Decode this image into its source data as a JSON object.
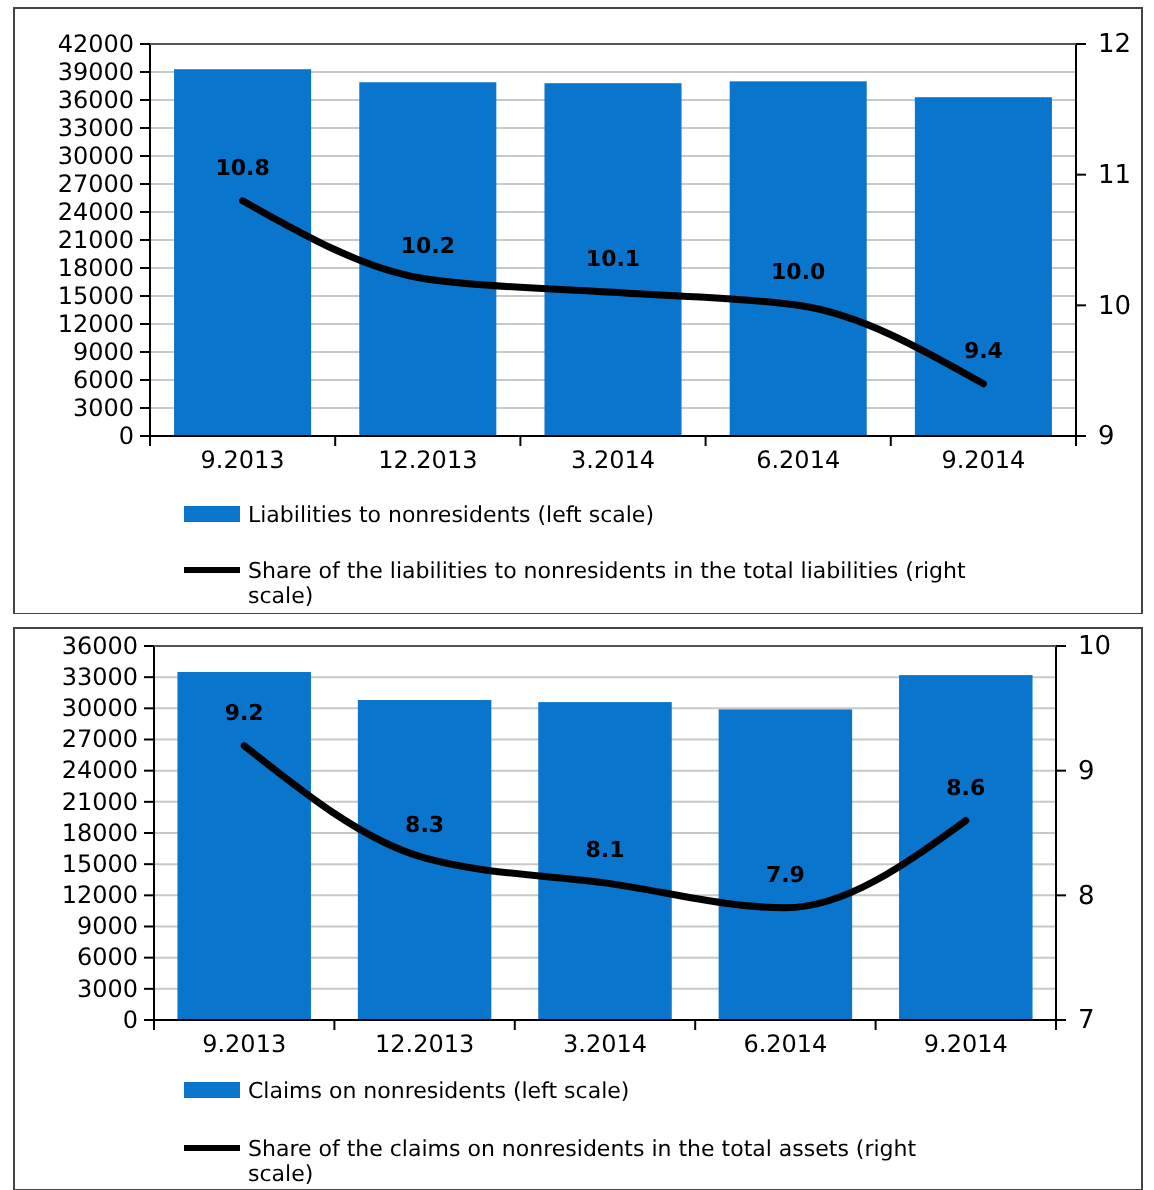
{
  "chart_data": [
    {
      "type": "bar",
      "categories": [
        "9.2013",
        "12.2013",
        "3.2014",
        "6.2014",
        "9.2014"
      ],
      "ylim": [
        0,
        42000
      ],
      "yticks": [
        0,
        3000,
        6000,
        9000,
        12000,
        15000,
        18000,
        21000,
        24000,
        27000,
        30000,
        33000,
        36000,
        39000,
        42000
      ],
      "y2lim": [
        9,
        12
      ],
      "y2ticks": [
        9,
        10,
        11,
        12
      ],
      "grid": "y",
      "legend": "bottom",
      "series": [
        {
          "name": "Liabilities to nonresidents (left scale)",
          "color": "#0a75cc",
          "values": [
            39300,
            37900,
            37800,
            38000,
            36300
          ]
        },
        {
          "type": "line",
          "axis": "y2",
          "name": "Share of the liabilities to nonresidents in the total liabilities (right scale)",
          "color": "#000000",
          "values": [
            10.8,
            10.2,
            10.1,
            10.0,
            9.4
          ],
          "value_labels": [
            "10.8",
            "10.2",
            "10.1",
            "10.0",
            "9.4"
          ]
        }
      ]
    },
    {
      "type": "bar",
      "categories": [
        "9.2013",
        "12.2013",
        "3.2014",
        "6.2014",
        "9.2014"
      ],
      "ylim": [
        0,
        36000
      ],
      "yticks": [
        0,
        3000,
        6000,
        9000,
        12000,
        15000,
        18000,
        21000,
        24000,
        27000,
        30000,
        33000,
        36000
      ],
      "y2lim": [
        7,
        10
      ],
      "y2ticks": [
        7,
        8,
        9,
        10
      ],
      "grid": "y",
      "legend": "bottom",
      "series": [
        {
          "name": "Claims on nonresidents (left scale)",
          "color": "#0a75cc",
          "values": [
            33500,
            30800,
            30600,
            29900,
            33200
          ]
        },
        {
          "type": "line",
          "axis": "y2",
          "name": "Share of the claims on nonresidents in the total assets (right scale)",
          "color": "#000000",
          "values": [
            9.2,
            8.3,
            8.1,
            7.9,
            8.6
          ],
          "value_labels": [
            "9.2",
            "8.3",
            "8.1",
            "7.9",
            "8.6"
          ]
        }
      ]
    }
  ]
}
